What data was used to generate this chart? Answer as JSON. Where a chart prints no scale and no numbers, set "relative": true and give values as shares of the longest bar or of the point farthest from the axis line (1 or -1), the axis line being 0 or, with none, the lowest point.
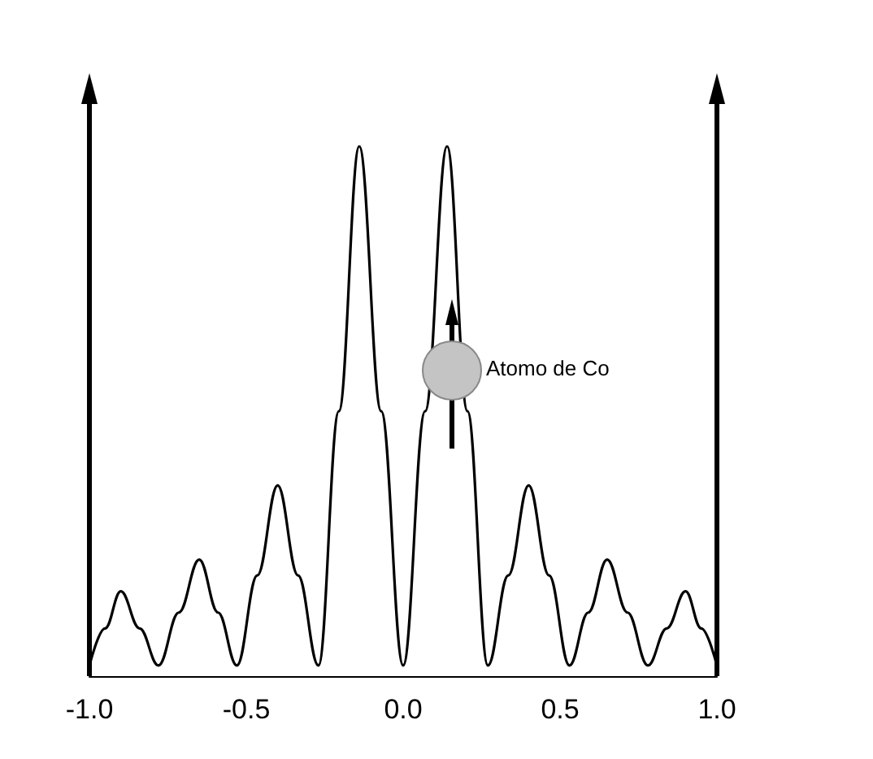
{
  "chart_data": {
    "type": "line",
    "relative": true,
    "marker": "none",
    "x": [
      -1,
      -0.95,
      -0.9,
      -0.84,
      -0.78,
      -0.715,
      -0.65,
      -0.59,
      -0.53,
      -0.465,
      -0.4,
      -0.335,
      -0.27,
      -0.205,
      -0.14,
      -0.07,
      0,
      0.07,
      0.14,
      0.205,
      0.27,
      0.335,
      0.4,
      0.465,
      0.53,
      0.59,
      0.65,
      0.715,
      0.78,
      0.84,
      0.9,
      0.95,
      1
    ],
    "series": [
      {
        "color": "#000000",
        "values": [
          0.02,
          0.09,
          0.16,
          0.09,
          0.02,
          0.12,
          0.22,
          0.12,
          0.02,
          0.19,
          0.36,
          0.19,
          0.02,
          0.5,
          1,
          0.5,
          0.02,
          0.5,
          1,
          0.5,
          0.02,
          0.19,
          0.36,
          0.19,
          0.02,
          0.12,
          0.22,
          0.12,
          0.02,
          0.09,
          0.16,
          0.09,
          0.02
        ]
      }
    ],
    "xlim": [
      -1,
      1
    ],
    "xticks": [
      {
        "value": -1,
        "label": "-1.0"
      },
      {
        "value": -0.5,
        "label": "-0.5"
      },
      {
        "value": 0,
        "label": "0.0"
      },
      {
        "value": 0.5,
        "label": "0.5"
      },
      {
        "value": 1,
        "label": "1.0"
      }
    ],
    "annotations": [
      "Atomo de Co"
    ]
  }
}
